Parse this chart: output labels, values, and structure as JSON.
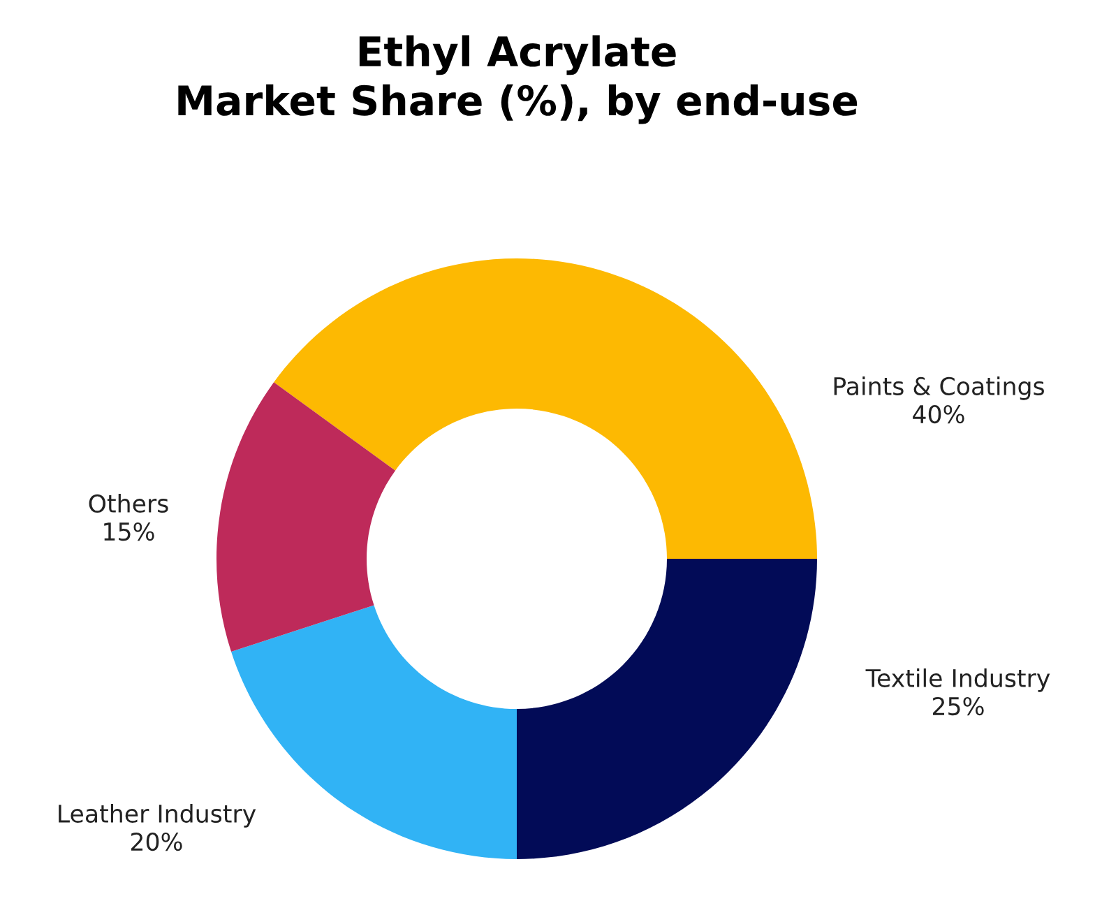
{
  "chart_data": {
    "type": "donut",
    "title": "Ethyl Acrylate\nMarket Share (%), by end-use",
    "categories": [
      "Paints & Coatings",
      "Textile Industry",
      "Leather Industry",
      "Others"
    ],
    "values": [
      40,
      25,
      20,
      15
    ],
    "colors": [
      "#fdb902",
      "#020b57",
      "#31b3f5",
      "#be2a5a"
    ],
    "value_labels": [
      "40%",
      "25%",
      "20%",
      "15%"
    ]
  }
}
